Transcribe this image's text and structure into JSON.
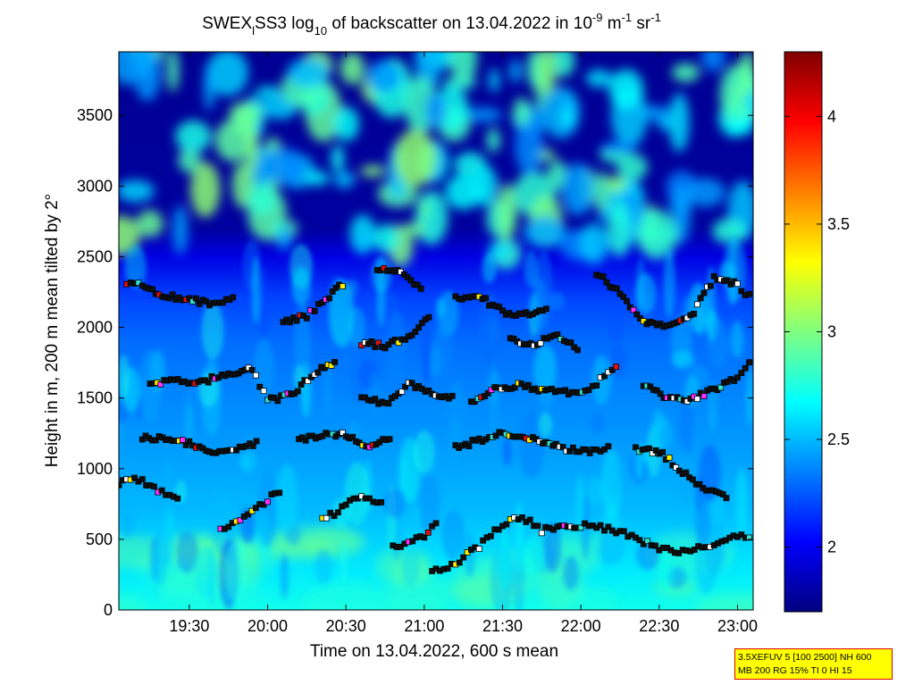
{
  "chart_data": {
    "type": "heatmap",
    "title": {
      "base": "SWEX",
      "sub1": "l",
      "mid": "SS3 log",
      "sub2": "10",
      "rest": " of backscatter on 13.04.2022 in 10",
      "sup1": "-9",
      "unit1": " m",
      "sup2": "-1",
      "unit2": " sr",
      "sup3": "-1"
    },
    "xlabel": "Time on 13.04.2022, 600 s mean",
    "ylabel": "Height in m, 200 m mean tilted by 2°",
    "x_range_hours": [
      19.05,
      23.1
    ],
    "x_ticks": [
      {
        "label": "19:30",
        "h": 19.5
      },
      {
        "label": "20:00",
        "h": 20.0
      },
      {
        "label": "20:30",
        "h": 20.5
      },
      {
        "label": "21:00",
        "h": 21.0
      },
      {
        "label": "21:30",
        "h": 21.5
      },
      {
        "label": "22:00",
        "h": 22.0
      },
      {
        "label": "22:30",
        "h": 22.5
      },
      {
        "label": "23:00",
        "h": 23.0
      }
    ],
    "ylim": [
      0,
      3950
    ],
    "y_ticks": [
      0,
      500,
      1000,
      1500,
      2000,
      2500,
      3000,
      3500
    ],
    "colorbar": {
      "range": [
        1.7,
        4.3
      ],
      "ticks": [
        "2",
        "2.5",
        "3",
        "3.5",
        "4"
      ],
      "tick_values": [
        2,
        2.5,
        3,
        3.5,
        4
      ]
    },
    "colormap": "jet",
    "layers": [
      {
        "name": "surface layer top",
        "points": [
          [
            21.05,
            280
          ],
          [
            21.15,
            300
          ],
          [
            21.25,
            370
          ],
          [
            21.35,
            450
          ],
          [
            21.45,
            560
          ],
          [
            21.55,
            640
          ],
          [
            21.65,
            640
          ],
          [
            21.75,
            560
          ],
          [
            21.85,
            590
          ],
          [
            22.0,
            600
          ],
          [
            22.1,
            590
          ],
          [
            22.2,
            570
          ],
          [
            22.3,
            530
          ],
          [
            22.4,
            480
          ],
          [
            22.5,
            440
          ],
          [
            22.6,
            420
          ],
          [
            22.7,
            420
          ],
          [
            22.8,
            450
          ],
          [
            22.9,
            470
          ],
          [
            23.0,
            520
          ],
          [
            23.1,
            500
          ]
        ]
      },
      {
        "name": "layer 1",
        "points": [
          [
            19.05,
            900
          ],
          [
            19.15,
            940
          ],
          [
            19.25,
            880
          ],
          [
            19.35,
            820
          ],
          [
            19.45,
            790
          ]
        ]
      },
      {
        "name": "layer 2",
        "points": [
          [
            19.7,
            560
          ],
          [
            19.8,
            620
          ],
          [
            19.9,
            700
          ],
          [
            20.0,
            780
          ],
          [
            20.1,
            860
          ]
        ]
      },
      {
        "name": "layer 3",
        "points": [
          [
            20.35,
            650
          ],
          [
            20.45,
            690
          ],
          [
            20.55,
            790
          ],
          [
            20.65,
            790
          ],
          [
            20.75,
            740
          ]
        ]
      },
      {
        "name": "layer 4",
        "points": [
          [
            20.8,
            450
          ],
          [
            20.9,
            480
          ],
          [
            21.0,
            530
          ],
          [
            21.1,
            620
          ]
        ]
      },
      {
        "name": "layer 5",
        "points": [
          [
            19.2,
            1220
          ],
          [
            19.35,
            1210
          ],
          [
            19.5,
            1180
          ],
          [
            19.65,
            1120
          ],
          [
            19.8,
            1140
          ],
          [
            19.95,
            1190
          ]
        ]
      },
      {
        "name": "layer 6",
        "points": [
          [
            20.2,
            1200
          ],
          [
            20.35,
            1240
          ],
          [
            20.5,
            1240
          ],
          [
            20.65,
            1160
          ],
          [
            20.8,
            1230
          ]
        ]
      },
      {
        "name": "layer 7",
        "points": [
          [
            21.2,
            1150
          ],
          [
            21.35,
            1200
          ],
          [
            21.5,
            1250
          ],
          [
            21.65,
            1220
          ],
          [
            21.8,
            1170
          ],
          [
            21.95,
            1130
          ],
          [
            22.1,
            1120
          ],
          [
            22.2,
            1180
          ]
        ]
      },
      {
        "name": "layer 8",
        "points": [
          [
            22.35,
            1140
          ],
          [
            22.5,
            1120
          ],
          [
            22.65,
            980
          ],
          [
            22.8,
            850
          ],
          [
            22.95,
            800
          ]
        ]
      },
      {
        "name": "layer 9",
        "points": [
          [
            19.25,
            1600
          ],
          [
            19.45,
            1620
          ],
          [
            19.6,
            1620
          ],
          [
            19.75,
            1680
          ],
          [
            19.9,
            1700
          ],
          [
            20.0,
            1480
          ],
          [
            20.15,
            1520
          ],
          [
            20.3,
            1680
          ],
          [
            20.45,
            1760
          ]
        ]
      },
      {
        "name": "layer 10",
        "points": [
          [
            20.6,
            1520
          ],
          [
            20.75,
            1460
          ],
          [
            20.9,
            1600
          ],
          [
            21.05,
            1540
          ],
          [
            21.2,
            1500
          ]
        ]
      },
      {
        "name": "layer 11",
        "points": [
          [
            21.3,
            1480
          ],
          [
            21.45,
            1570
          ],
          [
            21.6,
            1590
          ],
          [
            21.75,
            1560
          ],
          [
            21.9,
            1540
          ],
          [
            22.05,
            1560
          ],
          [
            22.15,
            1650
          ],
          [
            22.25,
            1760
          ]
        ]
      },
      {
        "name": "layer 12",
        "points": [
          [
            22.4,
            1590
          ],
          [
            22.55,
            1500
          ],
          [
            22.7,
            1490
          ],
          [
            22.85,
            1560
          ],
          [
            23.0,
            1640
          ],
          [
            23.1,
            1780
          ]
        ]
      },
      {
        "name": "layer 13",
        "points": [
          [
            19.1,
            2320
          ],
          [
            19.2,
            2290
          ],
          [
            19.35,
            2220
          ],
          [
            19.5,
            2200
          ],
          [
            19.65,
            2160
          ],
          [
            19.8,
            2220
          ]
        ]
      },
      {
        "name": "layer 14",
        "points": [
          [
            20.1,
            2040
          ],
          [
            20.25,
            2080
          ],
          [
            20.35,
            2180
          ],
          [
            20.5,
            2330
          ]
        ]
      },
      {
        "name": "layer 15",
        "points": [
          [
            20.6,
            1890
          ],
          [
            20.75,
            1870
          ],
          [
            20.9,
            1940
          ],
          [
            21.05,
            2100
          ]
        ]
      },
      {
        "name": "layer 16",
        "points": [
          [
            20.7,
            2420
          ],
          [
            20.85,
            2400
          ],
          [
            21.0,
            2260
          ]
        ]
      },
      {
        "name": "layer 17",
        "points": [
          [
            21.2,
            2210
          ],
          [
            21.35,
            2220
          ],
          [
            21.5,
            2110
          ],
          [
            21.65,
            2090
          ],
          [
            21.8,
            2120
          ]
        ]
      },
      {
        "name": "layer 18",
        "points": [
          [
            22.1,
            2380
          ],
          [
            22.25,
            2240
          ],
          [
            22.4,
            2040
          ],
          [
            22.55,
            2020
          ],
          [
            22.7,
            2070
          ],
          [
            22.85,
            2350
          ],
          [
            23.0,
            2300
          ],
          [
            23.1,
            2190
          ]
        ]
      },
      {
        "name": "layer 19",
        "points": [
          [
            21.55,
            1920
          ],
          [
            21.7,
            1880
          ],
          [
            21.85,
            1940
          ],
          [
            22.0,
            1830
          ]
        ]
      }
    ]
  },
  "note": {
    "line1": "3.5XEFUV 5 [100 2500] NH 600",
    "line2": "MB 200 RG 15% TI 0 HI 15"
  },
  "colors": {
    "marker_main": "#101010",
    "marker_white": "#ffffff",
    "marker_red": "#e01010",
    "marker_yellow": "#ffee00",
    "marker_magenta": "#ff30ff",
    "marker_cyan": "#30e0d0"
  }
}
